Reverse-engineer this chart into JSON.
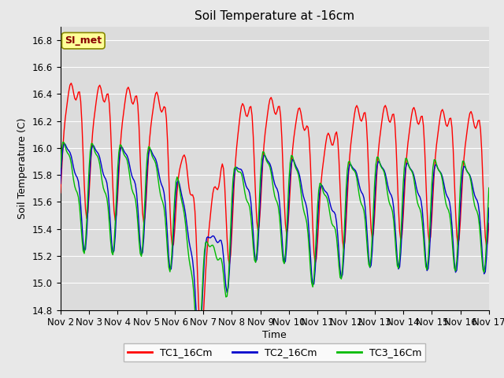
{
  "title": "Soil Temperature at -16cm",
  "xlabel": "Time",
  "ylabel": "Soil Temperature (C)",
  "ylim": [
    14.8,
    16.9
  ],
  "xlim": [
    0,
    15
  ],
  "x_tick_labels": [
    "Nov 2",
    "Nov 3",
    "Nov 4",
    "Nov 5",
    "Nov 6",
    "Nov 7",
    "Nov 8",
    "Nov 9",
    "Nov 10",
    "Nov 11",
    "Nov 12",
    "Nov 13",
    "Nov 14",
    "Nov 15",
    "Nov 16",
    "Nov 17"
  ],
  "colors": {
    "TC1": "#ff0000",
    "TC2": "#0000cc",
    "TC3": "#00bb00"
  },
  "legend_labels": [
    "TC1_16Cm",
    "TC2_16Cm",
    "TC3_16Cm"
  ],
  "annotation": "SI_met",
  "bg_color": "#e8e8e8",
  "plot_bg": "#dcdcdc",
  "grid_color": "#ffffff",
  "title_fontsize": 11,
  "axis_fontsize": 9,
  "tick_fontsize": 8.5,
  "linewidth": 1.0
}
